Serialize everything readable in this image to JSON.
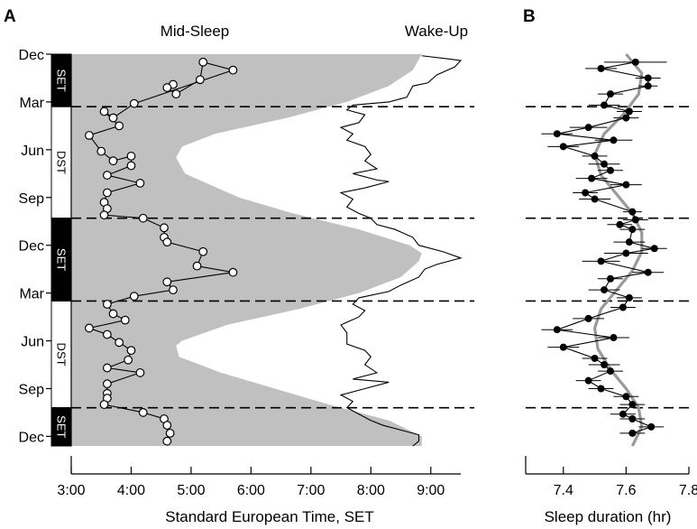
{
  "chart_data": [
    {
      "panel": "A",
      "type": "line",
      "title": "",
      "series_labels": [
        "Mid-Sleep",
        "Wake-Up"
      ],
      "xlabel": "Standard European Time, SET",
      "xlim": [
        3.0,
        9.5
      ],
      "x_ticks": [
        3,
        4,
        5,
        6,
        7,
        8,
        9
      ],
      "x_tick_labels": [
        "3:00",
        "4:00",
        "5:00",
        "6:00",
        "7:00",
        "8:00",
        "9:00"
      ],
      "ylim": [
        0,
        24.6
      ],
      "y_ticks": [
        0,
        3,
        6,
        9,
        12,
        15,
        18,
        21,
        24
      ],
      "y_tick_labels": [
        "Dec",
        "Mar",
        "Jun",
        "Sep",
        "Dec",
        "Mar",
        "Jun",
        "Sep",
        "Dec"
      ],
      "dashed_lines_at_month": [
        3.3,
        10.3,
        15.5,
        22.2
      ],
      "time_regimes": [
        {
          "label": "SET",
          "from": 0,
          "to": 3.3,
          "fill": "black"
        },
        {
          "label": "DST",
          "from": 3.3,
          "to": 10.3,
          "fill": "white"
        },
        {
          "label": "SET",
          "from": 10.3,
          "to": 15.5,
          "fill": "black"
        },
        {
          "label": "DST",
          "from": 15.5,
          "to": 22.2,
          "fill": "white"
        },
        {
          "label": "SET",
          "from": 22.2,
          "to": 24.6,
          "fill": "black"
        }
      ],
      "daylight_boundary": {
        "y": [
          0,
          1,
          2,
          3,
          4,
          5,
          5.8,
          6.5,
          7.5,
          9,
          10,
          11,
          12,
          12.5,
          13,
          14,
          15,
          16,
          17,
          18,
          18.3,
          19,
          20,
          21,
          22,
          23,
          24,
          24.6
        ],
        "x": [
          8.85,
          8.7,
          8.3,
          7.6,
          6.6,
          5.4,
          4.85,
          4.75,
          4.9,
          5.8,
          6.7,
          7.8,
          8.65,
          8.85,
          8.8,
          8.5,
          7.8,
          6.8,
          5.6,
          4.85,
          4.75,
          4.8,
          5.5,
          6.4,
          7.3,
          8.3,
          8.85,
          8.85
        ]
      },
      "series": [
        {
          "name": "Mid-Sleep",
          "marker": "open-circle",
          "points": [
            [
              4.7,
              1.9
            ],
            [
              4.6,
              2.1
            ],
            [
              4.75,
              2.5
            ],
            [
              5.15,
              1.6
            ],
            [
              5.2,
              0.5
            ],
            [
              5.7,
              1.0
            ],
            [
              4.05,
              3.1
            ],
            [
              3.7,
              4.0
            ],
            [
              3.55,
              3.6
            ],
            [
              3.8,
              4.5
            ],
            [
              3.3,
              5.1
            ],
            [
              3.5,
              6.1
            ],
            [
              3.7,
              6.7
            ],
            [
              4.0,
              6.4
            ],
            [
              4.0,
              7.0
            ],
            [
              3.6,
              7.6
            ],
            [
              4.15,
              8.1
            ],
            [
              3.6,
              8.7
            ],
            [
              3.55,
              9.3
            ],
            [
              3.6,
              9.7
            ],
            [
              3.55,
              10.1
            ],
            [
              4.2,
              10.3
            ],
            [
              4.55,
              10.9
            ],
            [
              4.55,
              11.5
            ],
            [
              4.6,
              11.8
            ],
            [
              5.2,
              12.4
            ],
            [
              5.1,
              13.3
            ],
            [
              5.7,
              13.7
            ],
            [
              4.6,
              14.3
            ],
            [
              4.7,
              14.8
            ],
            [
              4.05,
              15.2
            ],
            [
              3.6,
              15.7
            ],
            [
              3.7,
              16.3
            ],
            [
              3.9,
              16.7
            ],
            [
              3.3,
              17.2
            ],
            [
              3.6,
              17.6
            ],
            [
              3.8,
              18.1
            ],
            [
              4.0,
              18.6
            ],
            [
              3.95,
              19.2
            ],
            [
              3.6,
              19.7
            ],
            [
              4.15,
              20.0
            ],
            [
              3.6,
              20.7
            ],
            [
              3.6,
              21.3
            ],
            [
              3.6,
              21.6
            ],
            [
              3.55,
              22.0
            ],
            [
              4.2,
              22.5
            ],
            [
              4.55,
              22.9
            ],
            [
              4.6,
              23.3
            ],
            [
              4.65,
              23.8
            ],
            [
              4.6,
              24.3
            ]
          ]
        },
        {
          "name": "Wake-Up",
          "marker": "none",
          "points": [
            [
              8.85,
              0.1
            ],
            [
              9.3,
              0.3
            ],
            [
              9.5,
              0.4
            ],
            [
              9.4,
              0.8
            ],
            [
              9.1,
              1.3
            ],
            [
              8.95,
              1.8
            ],
            [
              8.7,
              2.0
            ],
            [
              8.6,
              2.7
            ],
            [
              8.3,
              3.0
            ],
            [
              7.7,
              3.2
            ],
            [
              7.6,
              3.5
            ],
            [
              7.9,
              3.8
            ],
            [
              7.8,
              4.3
            ],
            [
              7.5,
              4.6
            ],
            [
              7.7,
              5.0
            ],
            [
              7.6,
              5.4
            ],
            [
              7.9,
              5.8
            ],
            [
              8.0,
              6.3
            ],
            [
              7.9,
              6.7
            ],
            [
              8.1,
              7.2
            ],
            [
              7.7,
              7.5
            ],
            [
              8.1,
              7.9
            ],
            [
              8.3,
              8.0
            ],
            [
              7.9,
              8.4
            ],
            [
              7.5,
              8.7
            ],
            [
              7.7,
              9.1
            ],
            [
              7.6,
              9.6
            ],
            [
              7.8,
              10.0
            ],
            [
              8.0,
              10.3
            ],
            [
              8.1,
              10.7
            ],
            [
              8.4,
              11.0
            ],
            [
              8.7,
              11.5
            ],
            [
              8.8,
              12.0
            ],
            [
              9.2,
              12.4
            ],
            [
              9.5,
              12.8
            ],
            [
              9.1,
              13.2
            ],
            [
              8.9,
              13.5
            ],
            [
              8.8,
              14.0
            ],
            [
              8.5,
              14.5
            ],
            [
              8.3,
              14.9
            ],
            [
              7.8,
              15.3
            ],
            [
              7.7,
              15.7
            ],
            [
              7.9,
              16.1
            ],
            [
              7.8,
              16.5
            ],
            [
              7.5,
              17.0
            ],
            [
              7.6,
              17.5
            ],
            [
              7.6,
              18.2
            ],
            [
              7.9,
              18.6
            ],
            [
              8.0,
              19.0
            ],
            [
              7.9,
              19.5
            ],
            [
              8.1,
              20.0
            ],
            [
              7.7,
              20.4
            ],
            [
              8.3,
              20.6
            ],
            [
              7.9,
              21.0
            ],
            [
              7.5,
              21.4
            ],
            [
              7.7,
              21.8
            ],
            [
              7.6,
              22.2
            ],
            [
              7.8,
              22.6
            ],
            [
              8.0,
              23.0
            ],
            [
              8.2,
              23.3
            ],
            [
              8.5,
              23.6
            ],
            [
              8.8,
              23.9
            ],
            [
              8.8,
              24.3
            ],
            [
              8.7,
              24.6
            ]
          ]
        }
      ]
    },
    {
      "panel": "B",
      "type": "line",
      "title": "",
      "xlabel": "Sleep duration (hr)",
      "xlim": [
        7.28,
        7.8
      ],
      "x_ticks": [
        7.4,
        7.6,
        7.8
      ],
      "x_tick_labels": [
        "7.4",
        "7.6",
        "7.8"
      ],
      "ylim": [
        0,
        24.6
      ],
      "dashed_lines_at_month": [
        3.3,
        10.3,
        15.5,
        22.2
      ],
      "series": [
        {
          "name": "Sleep duration",
          "marker": "filled-circle-with-error-bar",
          "points": [
            [
              7.63,
              0.5,
              0.1
            ],
            [
              7.52,
              0.9,
              0.05
            ],
            [
              7.67,
              1.5,
              0.04
            ],
            [
              7.67,
              2.0,
              0.03
            ],
            [
              7.55,
              2.5,
              0.04
            ],
            [
              7.53,
              3.2,
              0.05
            ],
            [
              7.61,
              3.6,
              0.04
            ],
            [
              7.6,
              4.0,
              0.04
            ],
            [
              7.48,
              4.6,
              0.06
            ],
            [
              7.38,
              5.0,
              0.05
            ],
            [
              7.56,
              5.4,
              0.06
            ],
            [
              7.4,
              5.8,
              0.05
            ],
            [
              7.5,
              6.4,
              0.04
            ],
            [
              7.53,
              6.9,
              0.05
            ],
            [
              7.55,
              7.3,
              0.04
            ],
            [
              7.49,
              7.8,
              0.05
            ],
            [
              7.6,
              8.2,
              0.05
            ],
            [
              7.47,
              8.7,
              0.04
            ],
            [
              7.5,
              9.1,
              0.05
            ],
            [
              7.62,
              9.9,
              0.03
            ],
            [
              7.63,
              10.4,
              0.04
            ],
            [
              7.58,
              10.7,
              0.04
            ],
            [
              7.62,
              11.0,
              0.04
            ],
            [
              7.61,
              11.8,
              0.05
            ],
            [
              7.69,
              12.2,
              0.04
            ],
            [
              7.6,
              12.5,
              0.07
            ],
            [
              7.52,
              13.0,
              0.06
            ],
            [
              7.67,
              13.7,
              0.05
            ],
            [
              7.55,
              14.1,
              0.04
            ],
            [
              7.53,
              14.8,
              0.05
            ],
            [
              7.61,
              15.3,
              0.04
            ],
            [
              7.59,
              15.9,
              0.04
            ],
            [
              7.48,
              16.6,
              0.05
            ],
            [
              7.38,
              17.3,
              0.05
            ],
            [
              7.56,
              17.8,
              0.05
            ],
            [
              7.4,
              18.4,
              0.05
            ],
            [
              7.5,
              19.1,
              0.04
            ],
            [
              7.53,
              19.5,
              0.05
            ],
            [
              7.55,
              19.9,
              0.04
            ],
            [
              7.48,
              20.5,
              0.04
            ],
            [
              7.52,
              21.0,
              0.04
            ],
            [
              7.6,
              21.5,
              0.04
            ],
            [
              7.62,
              22.0,
              0.04
            ],
            [
              7.59,
              22.6,
              0.04
            ],
            [
              7.62,
              22.9,
              0.04
            ],
            [
              7.68,
              23.4,
              0.04
            ],
            [
              7.62,
              23.8,
              0.04
            ]
          ]
        },
        {
          "name": "Fit",
          "marker": "none",
          "color": "#9a9a9a",
          "points": [
            [
              7.6,
              0.0
            ],
            [
              7.65,
              1.2
            ],
            [
              7.64,
              2.5
            ],
            [
              7.59,
              3.8
            ],
            [
              7.53,
              5.0
            ],
            [
              7.5,
              6.3
            ],
            [
              7.52,
              7.6
            ],
            [
              7.57,
              8.8
            ],
            [
              7.62,
              10.0
            ],
            [
              7.65,
              11.2
            ],
            [
              7.65,
              12.4
            ],
            [
              7.62,
              13.6
            ],
            [
              7.57,
              14.8
            ],
            [
              7.52,
              16.0
            ],
            [
              7.5,
              17.2
            ],
            [
              7.51,
              18.5
            ],
            [
              7.55,
              19.8
            ],
            [
              7.6,
              21.0
            ],
            [
              7.64,
              22.2
            ],
            [
              7.65,
              23.4
            ],
            [
              7.62,
              24.6
            ]
          ]
        }
      ]
    }
  ],
  "panel_labels": [
    "A",
    "B"
  ],
  "colors": {
    "daylight_fill": "#c0c0c0",
    "regime_dark": "#000000",
    "fit_line": "#9a9a9a",
    "open_marker_fill": "#ffffff"
  }
}
